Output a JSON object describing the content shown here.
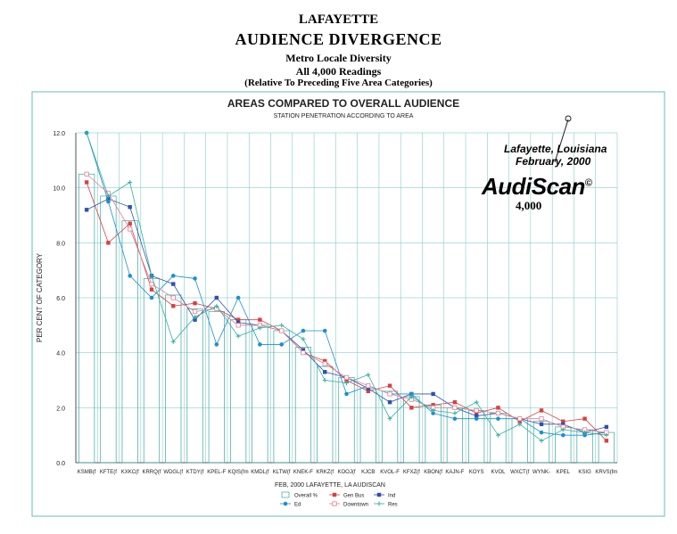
{
  "header": {
    "line1": "LAFAYETTE",
    "line2": "AUDIENCE DIVERGENCE",
    "line3": "Metro Locale Diversity",
    "line4": "All 4,000 Readings",
    "line5": "(Relative To Preceding Five Area Categories)"
  },
  "brand": {
    "location_line1": "Lafayette, Louisiana",
    "location_line2": "February, 2000",
    "logo": "AudiScan",
    "copyright": "©",
    "count": "4,000"
  },
  "colors": {
    "overall": "#3aa8a0",
    "gen_bus": "#d84040",
    "ind": "#3050b0",
    "ed": "#1c90d0",
    "downtown": "#e08090",
    "res": "#30b0a0",
    "grid": "#6fc4be",
    "frame": "#7fc8c2"
  },
  "chart_data": {
    "type": "bar",
    "title": "AREAS COMPARED TO OVERALL AUDIENCE",
    "subtitle": "STATION PENETRATION ACCORDING TO AREA",
    "xlabel": "FEB, 2000  LAFAYETTE, LA  AUDISCAN",
    "ylabel": "PER CENT OF CATEGORY",
    "ylim": [
      0,
      12
    ],
    "yticks": [
      "0.0",
      "2.0",
      "4.0",
      "6.0",
      "8.0",
      "10.0",
      "12.0"
    ],
    "ytick_values": [
      0,
      2,
      4,
      6,
      8,
      10,
      12
    ],
    "categories": [
      "KSMB(f",
      "KFTE(f",
      "KXKC(f",
      "KRRQ(f",
      "WDGL(f",
      "KTDY(f",
      "KPEL-F",
      "KQIS(fm",
      "KMDL(f",
      "KLTW(f",
      "KNEK-F",
      "KRKZ(f",
      "KOOJ(f",
      "KJCB",
      "KVOL-F",
      "KFXZ(f",
      "KBON(f",
      "KAJN-F",
      "KOYS",
      "KVOL",
      "WXCT(f",
      "WYNK-",
      "KPEL",
      "KSIG",
      "KRVS(fm"
    ],
    "legend": {
      "placement": "bottom",
      "entries": [
        "Overall %",
        "Gen Bus",
        "Ind",
        "Ed",
        "Downtown",
        "Res"
      ]
    },
    "series": [
      {
        "name": "Overall %",
        "kind": "bar",
        "values": [
          10.5,
          9.7,
          8.8,
          6.7,
          6.1,
          5.6,
          5.5,
          5.2,
          5.0,
          4.8,
          4.2,
          3.5,
          3.1,
          2.7,
          2.6,
          2.4,
          2.1,
          2.0,
          1.9,
          1.8,
          1.6,
          1.5,
          1.3,
          1.2,
          1.1
        ]
      },
      {
        "name": "Gen Bus",
        "kind": "line",
        "marker": "square",
        "values": [
          10.2,
          8.0,
          8.7,
          6.3,
          5.7,
          5.8,
          5.6,
          5.2,
          5.2,
          4.8,
          4.0,
          3.7,
          3.0,
          2.6,
          2.8,
          2.0,
          2.1,
          2.2,
          1.8,
          2.0,
          1.5,
          1.9,
          1.5,
          1.6,
          0.8
        ]
      },
      {
        "name": "Ind",
        "kind": "line",
        "marker": "square",
        "values": [
          9.2,
          9.6,
          9.3,
          6.8,
          6.5,
          5.2,
          6.0,
          5.1,
          5.0,
          4.8,
          4.1,
          3.3,
          3.1,
          2.7,
          2.2,
          2.5,
          2.5,
          2.0,
          1.7,
          1.8,
          1.6,
          1.4,
          1.4,
          1.1,
          1.3
        ]
      },
      {
        "name": "Ed",
        "kind": "line",
        "marker": "circle",
        "values": [
          12.0,
          9.5,
          6.8,
          6.0,
          6.8,
          6.7,
          4.3,
          6.0,
          4.3,
          4.3,
          4.8,
          4.8,
          2.5,
          2.8,
          2.5,
          2.5,
          1.8,
          1.6,
          1.6,
          1.6,
          1.6,
          1.1,
          1.0,
          1.0,
          1.1
        ]
      },
      {
        "name": "Downtown",
        "kind": "line",
        "marker": "open-square",
        "values": [
          10.5,
          9.8,
          8.5,
          6.5,
          6.0,
          5.5,
          5.6,
          5.0,
          5.0,
          4.8,
          4.0,
          3.6,
          3.1,
          2.8,
          2.5,
          2.3,
          2.0,
          2.0,
          1.9,
          1.8,
          1.6,
          1.6,
          1.3,
          1.2,
          1.1
        ]
      },
      {
        "name": "Res",
        "kind": "line",
        "marker": "cross",
        "values": [
          12.0,
          9.7,
          10.2,
          6.8,
          4.4,
          5.3,
          5.7,
          4.6,
          4.9,
          5.0,
          4.5,
          3.0,
          2.9,
          3.2,
          1.6,
          2.4,
          1.9,
          1.8,
          2.2,
          1.0,
          1.4,
          0.8,
          1.2,
          1.1,
          1.0
        ]
      }
    ]
  }
}
